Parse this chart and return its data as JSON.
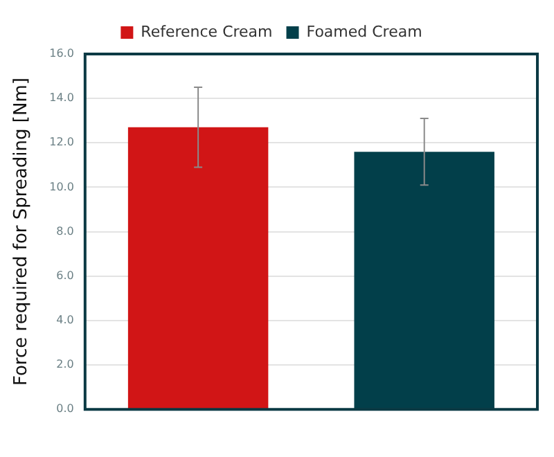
{
  "chart_data": {
    "type": "bar",
    "ylabel": "Force required for Spreading [Nm]",
    "categories": [
      null,
      null
    ],
    "series": [
      {
        "name": "Reference Cream",
        "color": "#d11516",
        "values": [
          12.7,
          null
        ],
        "errors": [
          1.8,
          null
        ]
      },
      {
        "name": "Foamed Cream",
        "color": "#023f4a",
        "values": [
          null,
          11.6
        ],
        "errors": [
          null,
          1.5
        ]
      }
    ],
    "ylim": [
      0,
      16
    ],
    "yticks": [
      {
        "value": 0,
        "label": "0.0"
      },
      {
        "value": 2,
        "label": "2.0"
      },
      {
        "value": 4,
        "label": "4.0"
      },
      {
        "value": 6,
        "label": "6.0"
      },
      {
        "value": 8,
        "label": "8.0"
      },
      {
        "value": 10,
        "label": "10.0"
      },
      {
        "value": 12,
        "label": "12.0"
      },
      {
        "value": 14,
        "label": "14.0"
      },
      {
        "value": 16,
        "label": "16.0"
      }
    ],
    "grid": "y",
    "legend": "top"
  }
}
